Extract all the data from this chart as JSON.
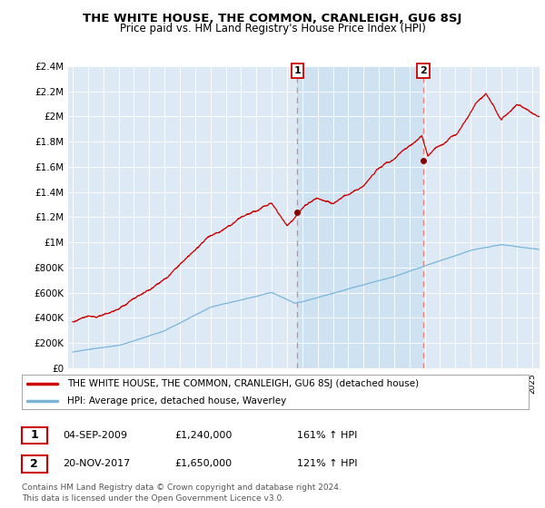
{
  "title": "THE WHITE HOUSE, THE COMMON, CRANLEIGH, GU6 8SJ",
  "subtitle": "Price paid vs. HM Land Registry's House Price Index (HPI)",
  "legend_line1": "THE WHITE HOUSE, THE COMMON, CRANLEIGH, GU6 8SJ (detached house)",
  "legend_line2": "HPI: Average price, detached house, Waverley",
  "annotation1_date": "04-SEP-2009",
  "annotation1_price": "£1,240,000",
  "annotation1_hpi": "161% ↑ HPI",
  "annotation2_date": "20-NOV-2017",
  "annotation2_price": "£1,650,000",
  "annotation2_hpi": "121% ↑ HPI",
  "footer": "Contains HM Land Registry data © Crown copyright and database right 2024.\nThis data is licensed under the Open Government Licence v3.0.",
  "hpi_color": "#7ab5d8",
  "price_color": "#cc0000",
  "dot_color": "#880000",
  "vline_color": "#e88080",
  "shade_color": "#c8dff0",
  "background_color": "#ffffff",
  "plot_bg_color": "#ddeaf5",
  "ylim_min": 0,
  "ylim_max": 2400000,
  "yticks": [
    0,
    200000,
    400000,
    600000,
    800000,
    1000000,
    1200000,
    1400000,
    1600000,
    1800000,
    2000000,
    2200000,
    2400000
  ],
  "ytick_labels": [
    "£0",
    "£200K",
    "£400K",
    "£600K",
    "£800K",
    "£1M",
    "£1.2M",
    "£1.4M",
    "£1.6M",
    "£1.8M",
    "£2M",
    "£2.2M",
    "£2.4M"
  ],
  "xlim_min": 1994.7,
  "xlim_max": 2025.5,
  "sale1_x": 2009.67,
  "sale1_y": 1240000,
  "sale2_x": 2017.9,
  "sale2_y": 1650000,
  "title_fontsize": 9.5,
  "subtitle_fontsize": 8.5
}
